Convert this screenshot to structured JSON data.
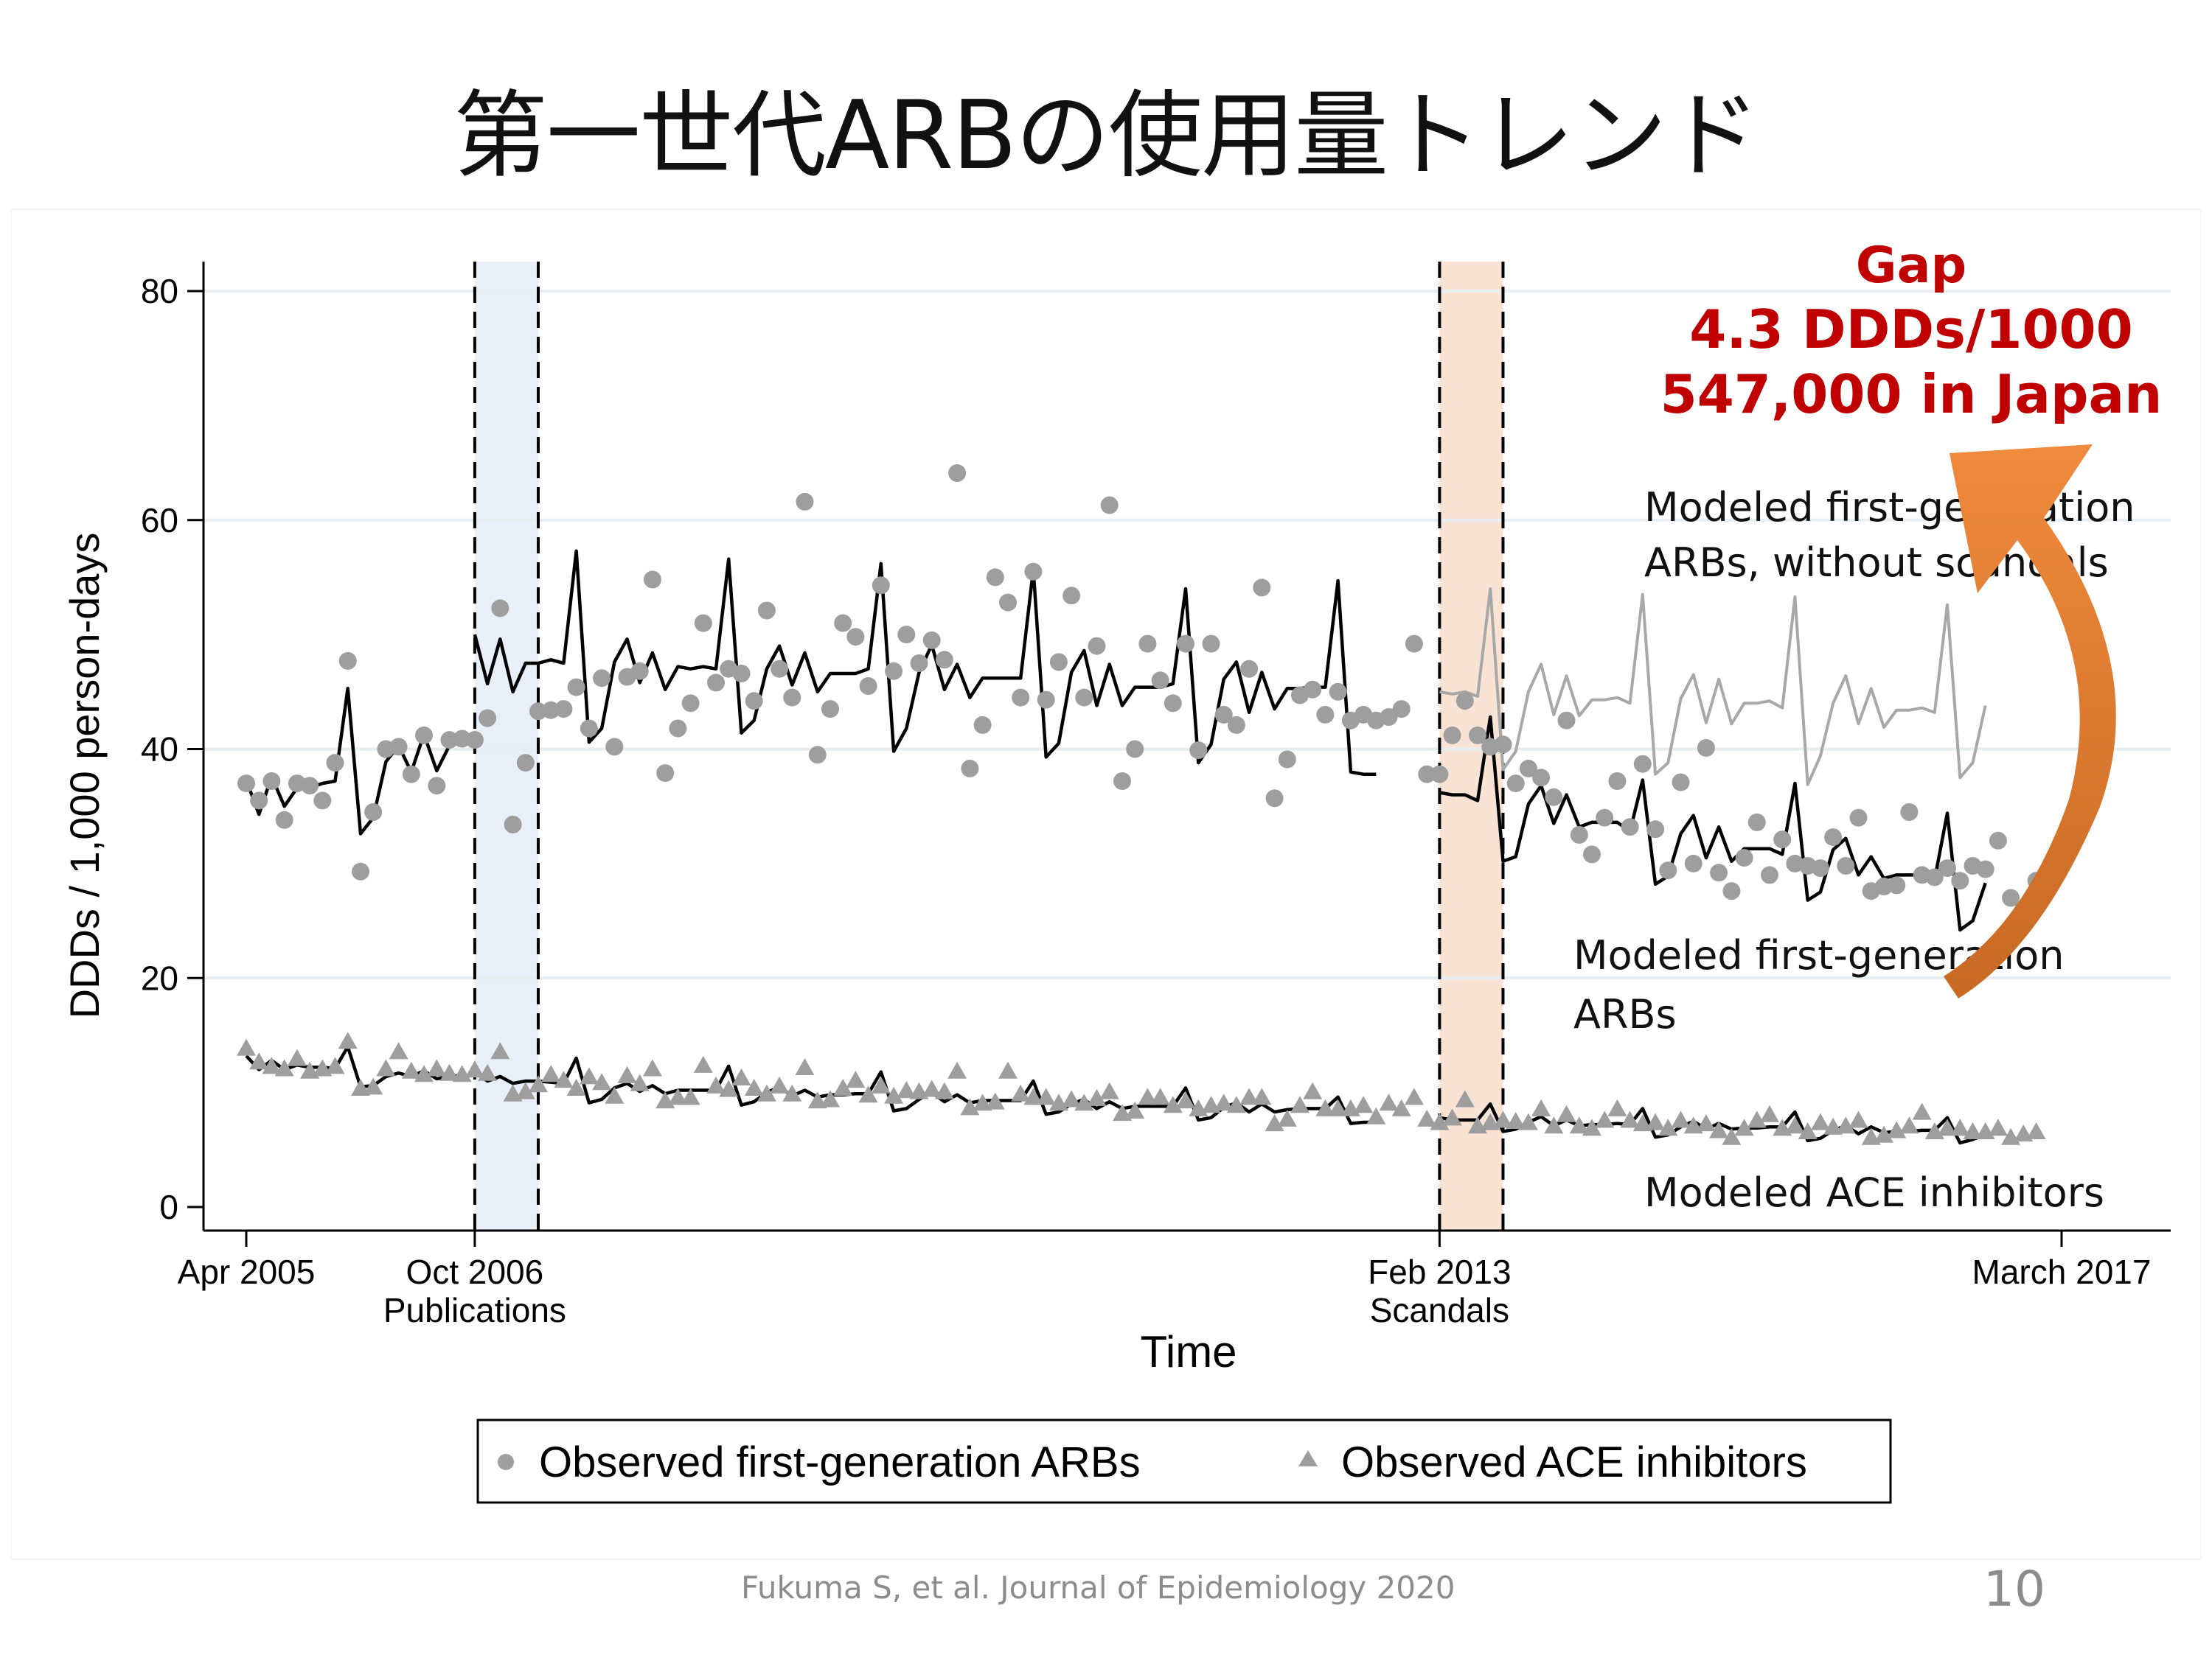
{
  "slide": {
    "title": "第一世代ARBの使用量トレンド",
    "citation": "Fukuma S, et al. Journal of Epidemiology 2020",
    "page_number": "10"
  },
  "colors": {
    "observed": "#9e9e9e",
    "modeled": "#000000",
    "counterfactual": "#a8a8a8",
    "publication_band": "#e9eff9",
    "scandal_band": "#f8e3d4",
    "gap_text": "#c00000",
    "arrow": "#e07a2a"
  },
  "chart_data": {
    "type": "scatter",
    "title": "",
    "xlabel": "Time",
    "ylabel": "DDDs / 1,000 person-days",
    "ylim": [
      0,
      80
    ],
    "yticks": [
      0,
      20,
      40,
      60,
      80
    ],
    "x_unit": "month",
    "x_start": "2005-04",
    "x_end": "2017-03",
    "xticks": [
      {
        "x": "2005-04",
        "label": "Apr 2005",
        "sublabel": ""
      },
      {
        "x": "2006-10",
        "label": "Oct 2006",
        "sublabel": "Publications"
      },
      {
        "x": "2013-02",
        "label": "Feb 2013",
        "sublabel": "Scandals"
      },
      {
        "x": "2017-03",
        "label": "March 2017",
        "sublabel": ""
      }
    ],
    "grid": true,
    "bands": [
      {
        "from": "2006-10",
        "to": "2007-03",
        "kind": "publication"
      },
      {
        "from": "2013-02",
        "to": "2013-07",
        "kind": "scandal"
      }
    ],
    "legend": {
      "position": "bottom",
      "items": [
        {
          "marker": "circle",
          "label": "Observed first-generation ARBs"
        },
        {
          "marker": "triangle",
          "label": "Observed ACE inhibitors"
        }
      ]
    },
    "annotations": {
      "counterfactual_label": [
        "Modeled first-generation",
        "ARBs, without scandals"
      ],
      "modeled_arb_label": [
        "Modeled first-generation",
        "ARBs"
      ],
      "modeled_ace_label": "Modeled ACE inhibitors",
      "gap": [
        "Gap",
        "4.3 DDDs/1000",
        "547,000 in Japan"
      ]
    },
    "series": [
      {
        "name": "Observed first-generation ARBs",
        "kind": "observed",
        "marker": "circle",
        "x_start": "2005-04",
        "values": [
          37.0,
          35.5,
          37.2,
          33.8,
          37.0,
          36.8,
          35.5,
          38.8,
          47.7,
          29.3,
          34.5,
          40.0,
          40.2,
          37.8,
          41.2,
          36.8,
          40.8,
          40.9,
          40.8,
          42.7,
          52.3,
          33.4,
          38.8,
          43.3,
          43.4,
          43.5,
          45.4,
          41.8,
          46.2,
          40.2,
          46.3,
          46.8,
          54.8,
          37.9,
          41.8,
          44.0,
          51.0,
          45.8,
          47.0,
          46.6,
          44.2,
          52.1,
          47.0,
          44.5,
          61.6,
          39.5,
          43.5,
          51.0,
          49.8,
          45.5,
          54.3,
          46.8,
          50.0,
          47.5,
          49.5,
          47.8,
          64.1,
          38.3,
          42.1,
          55.0,
          52.8,
          44.5,
          55.5,
          44.3,
          47.6,
          53.4,
          44.5,
          49.0,
          61.3,
          37.2,
          40.0,
          49.2,
          46.0,
          44.0,
          49.2,
          39.9,
          49.2,
          43.0,
          42.1,
          47.0,
          54.1,
          35.7,
          39.1,
          44.7,
          45.2,
          43.0,
          45.0,
          42.5,
          43.0,
          42.5,
          42.8,
          43.5,
          49.2,
          37.8,
          37.8,
          41.2,
          44.2,
          41.2,
          40.2,
          40.4,
          37.0,
          38.3,
          37.5,
          35.8,
          42.5,
          32.5,
          30.8,
          34.0,
          37.2,
          33.2,
          38.7,
          33.0,
          29.4,
          37.1,
          30.0,
          40.1,
          29.2,
          27.6,
          30.5,
          33.6,
          29.0,
          32.1,
          30.0,
          29.8,
          29.6,
          32.3,
          29.8,
          34.0,
          27.6,
          28.0,
          28.1,
          34.5,
          29.0,
          28.8,
          29.6,
          28.5,
          29.8,
          29.5,
          32.0,
          27.0,
          26.0,
          28.5
        ]
      },
      {
        "name": "Observed ACE inhibitors",
        "kind": "observed",
        "marker": "triangle",
        "x_start": "2005-04",
        "values": [
          13.8,
          12.6,
          12.2,
          12.0,
          12.9,
          11.8,
          12.0,
          12.2,
          14.4,
          10.3,
          10.4,
          12.0,
          13.5,
          11.8,
          11.5,
          12.0,
          11.6,
          11.5,
          11.9,
          11.6,
          13.5,
          9.8,
          10.0,
          10.6,
          11.5,
          11.0,
          10.3,
          11.3,
          10.8,
          9.6,
          11.4,
          10.7,
          12.0,
          9.2,
          9.5,
          9.5,
          12.3,
          10.5,
          10.2,
          11.2,
          10.3,
          9.8,
          10.5,
          9.8,
          12.1,
          9.2,
          9.3,
          10.3,
          11.0,
          9.7,
          10.5,
          9.6,
          10.1,
          10.0,
          10.2,
          10.0,
          11.8,
          8.6,
          9.0,
          9.1,
          11.8,
          9.8,
          9.5,
          9.5,
          9.0,
          9.3,
          9.0,
          9.4,
          10.0,
          8.1,
          8.3,
          9.5,
          9.5,
          8.8,
          9.2,
          8.5,
          8.8,
          9.0,
          8.8,
          9.5,
          9.5,
          7.2,
          7.6,
          8.8,
          10.0,
          8.5,
          8.5,
          8.5,
          8.8,
          7.8,
          9.0,
          8.5,
          9.5,
          7.6,
          7.3,
          7.7,
          9.3,
          7.0,
          7.3,
          7.5,
          7.4,
          7.3,
          8.5,
          7.0,
          8.0,
          7.0,
          6.8,
          7.5,
          8.5,
          7.5,
          7.2,
          7.3,
          6.8,
          7.5,
          7.0,
          7.2,
          6.6,
          6.0,
          6.8,
          7.5,
          8.0,
          6.8,
          7.0,
          6.5,
          7.3,
          6.9,
          7.0,
          7.5,
          6.0,
          6.2,
          6.6,
          7.0,
          8.2,
          6.5,
          6.8,
          6.8,
          6.5,
          6.5,
          6.8,
          6.0,
          6.3,
          6.5
        ]
      },
      {
        "name": "Modeled first-generation ARBs",
        "kind": "modeled",
        "x_start": "2005-04",
        "segments": [
          {
            "from_index": 0,
            "values": [
              37.3,
              34.3,
              37.6,
              35.0,
              36.6,
              36.6,
              37.0,
              37.2,
              45.3,
              32.6,
              34.0,
              38.9,
              40.3,
              38.0,
              41.3,
              38.1,
              40.3,
              40.6
            ]
          },
          {
            "from_index": 18,
            "values": [
              50.0,
              45.7,
              49.6,
              45.0,
              47.5,
              47.5,
              47.8,
              47.5,
              57.3,
              40.6,
              41.8,
              47.6,
              49.6,
              45.8,
              48.4,
              45.2,
              47.2,
              47.0,
              47.2,
              47.0,
              56.6,
              41.4,
              42.5,
              47.0,
              49.0,
              45.6,
              48.4,
              45.0,
              46.6,
              46.6,
              46.6,
              47.0,
              56.2,
              39.8,
              41.8,
              46.7,
              49.1,
              45.2,
              47.4,
              44.5,
              46.2,
              46.2,
              46.2,
              46.2,
              55.7,
              39.3,
              40.5,
              46.7,
              48.6,
              43.8,
              47.4,
              43.8,
              45.4,
              45.4,
              45.4,
              45.7,
              54.0,
              38.8,
              40.4,
              46.1,
              47.6,
              43.2,
              46.7,
              43.5,
              45.3,
              45.3,
              45.4,
              45.4,
              54.7,
              38.0,
              37.8,
              37.8
            ]
          }
        ]
      },
      {
        "name": "Modeled first-generation ARBs (post-scandal)",
        "kind": "modeled",
        "x_start": "2005-04",
        "segments": [
          {
            "from_index": 94,
            "values": [
              36.2,
              36.0,
              36.0,
              35.5,
              42.8,
              30.2,
              30.6,
              35.2,
              36.8,
              33.5,
              36.0,
              33.2,
              33.6,
              33.6,
              33.6,
              32.8,
              37.3,
              28.2,
              28.9,
              32.6,
              34.2,
              30.5,
              33.2,
              30.2,
              31.3,
              31.3,
              31.3,
              30.8,
              37.0,
              26.8,
              27.5,
              31.2,
              32.2,
              29.0,
              30.6,
              28.7,
              29.0,
              29.0,
              29.0,
              28.6,
              34.4,
              24.2,
              25.0,
              28.3
            ]
          }
        ]
      },
      {
        "name": "Modeled first-generation ARBs, without scandals",
        "kind": "counterfactual",
        "x_start": "2005-04",
        "segments": [
          {
            "from_index": 94,
            "values": [
              45.0,
              44.8,
              45.0,
              44.6,
              54.0,
              38.2,
              39.8,
              45.0,
              47.4,
              43.0,
              46.4,
              42.9,
              44.3,
              44.3,
              44.5,
              44.0,
              53.5,
              37.8,
              38.8,
              44.4,
              46.5,
              42.3,
              46.1,
              42.2,
              44.0,
              44.0,
              44.2,
              43.6,
              53.3,
              36.9,
              39.4,
              44.0,
              46.4,
              42.2,
              45.3,
              41.9,
              43.4,
              43.4,
              43.6,
              43.2,
              52.6,
              37.5,
              38.8,
              43.8
            ]
          }
        ]
      },
      {
        "name": "Modeled ACE inhibitors",
        "kind": "modeled",
        "x_start": "2005-04",
        "segments": [
          {
            "from_index": 0,
            "values": [
              13.2,
              12.0,
              12.8,
              12.0,
              12.4,
              12.2,
              12.2,
              12.1,
              14.0,
              10.5,
              10.6,
              11.4,
              11.7,
              11.4,
              11.9,
              11.2,
              11.4,
              11.5
            ]
          },
          {
            "from_index": 18,
            "values": [
              11.8,
              11.0,
              11.4,
              10.8,
              11.0,
              11.0,
              10.9,
              10.8,
              13.0,
              9.1,
              9.4,
              10.4,
              10.8,
              10.1,
              10.6,
              9.9,
              10.2,
              10.2,
              10.2,
              10.2,
              12.3,
              8.9,
              9.2,
              10.0,
              10.5,
              9.7,
              10.2,
              9.6,
              9.8,
              9.8,
              9.9,
              9.9,
              11.8,
              8.4,
              8.6,
              9.4,
              10.0,
              9.2,
              9.8,
              9.1,
              9.3,
              9.3,
              9.3,
              9.3,
              11.0,
              8.1,
              8.3,
              9.0,
              9.4,
              8.6,
              9.2,
              8.6,
              8.8,
              8.8,
              8.8,
              8.8,
              10.4,
              7.6,
              7.8,
              8.7,
              9.1,
              8.3,
              9.0,
              8.3,
              8.5,
              8.6,
              8.6,
              8.6,
              9.6,
              7.3,
              7.4,
              7.4
            ]
          },
          {
            "from_index": 94,
            "values": [
              7.8,
              7.6,
              7.6,
              7.6,
              9.0,
              6.6,
              6.8,
              7.4,
              7.9,
              7.1,
              7.6,
              7.1,
              7.2,
              7.2,
              7.3,
              7.2,
              8.6,
              6.1,
              6.3,
              7.0,
              7.5,
              6.8,
              7.3,
              6.8,
              6.9,
              6.9,
              7.0,
              7.0,
              8.3,
              5.8,
              6.0,
              6.7,
              7.1,
              6.4,
              7.0,
              6.5,
              6.6,
              6.6,
              6.7,
              6.7,
              7.8,
              5.6,
              5.9,
              6.3
            ]
          }
        ]
      }
    ]
  }
}
